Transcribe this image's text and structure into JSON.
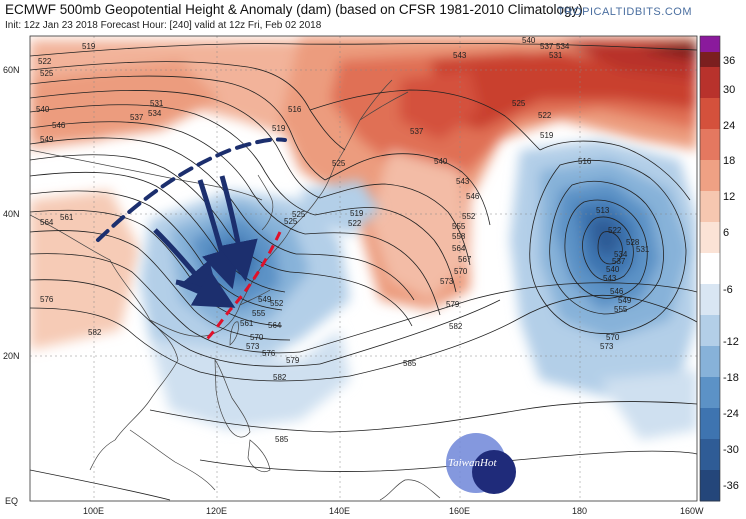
{
  "header": {
    "title": "ECMWF 500mb Geopotential Height & Anomaly (dam) (based on CFSR 1981-2010 Climatology)",
    "subtitle": "Init: 12z Jan 23 2018   Forecast Hour: [240]   valid at 12z Fri, Feb 02 2018",
    "brand": "TROPICALTIDBITS.COM"
  },
  "axes": {
    "lat_labels": [
      "60N",
      "40N",
      "20N",
      "EQ"
    ],
    "lon_labels": [
      "100E",
      "120E",
      "140E",
      "160E",
      "180",
      "160W"
    ]
  },
  "colorbar": {
    "ticks": [
      "36",
      "30",
      "24",
      "18",
      "12",
      "6",
      "-6",
      "-12",
      "-18",
      "-24",
      "-30",
      "-36"
    ],
    "colors": [
      "#7b1f1f",
      "#b8322c",
      "#d4513c",
      "#e47860",
      "#efa184",
      "#f6c7b0",
      "#fbe3d6",
      "#ffffff",
      "#d9e6f3",
      "#b3cfe8",
      "#87b2d9",
      "#5c92c6",
      "#3e74b0",
      "#2f5c96",
      "#24467a"
    ]
  },
  "contour_labels": [
    "519",
    "522",
    "525",
    "528",
    "531",
    "534",
    "537",
    "540",
    "543",
    "546",
    "549",
    "552",
    "555",
    "558",
    "561",
    "564",
    "567",
    "570",
    "573",
    "576",
    "579",
    "582",
    "585",
    "513",
    "516"
  ],
  "watermark": {
    "text": "TaiwanHot"
  }
}
